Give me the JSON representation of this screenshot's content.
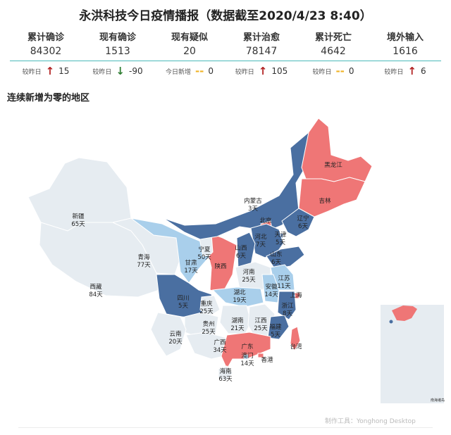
{
  "title": "永洪科技今日疫情播报（数据截至2020/4/23 8:40）",
  "kpis": [
    {
      "label": "累计确诊",
      "value": "84302",
      "delta_label": "较昨日",
      "dir": "up",
      "delta": "15"
    },
    {
      "label": "现有确诊",
      "value": "1513",
      "delta_label": "较昨日",
      "dir": "down",
      "delta": "-90"
    },
    {
      "label": "现有疑似",
      "value": "20",
      "delta_label": "今日新增",
      "dir": "none",
      "delta": "0"
    },
    {
      "label": "累计治愈",
      "value": "78147",
      "delta_label": "较昨日",
      "dir": "up",
      "delta": "105"
    },
    {
      "label": "累计死亡",
      "value": "4642",
      "delta_label": "较昨日",
      "dir": "none",
      "delta": "0"
    },
    {
      "label": "境外输入",
      "value": "1616",
      "delta_label": "较昨日",
      "dir": "up",
      "delta": "6"
    }
  ],
  "colors": {
    "up": "#b22222",
    "down": "#2e7d32",
    "none": "#f0b429",
    "zero_days_long": "#4a6fa1",
    "zero_days_short": "#a9cfeb",
    "active": "#ef7676",
    "no_data": "#e6ecf1"
  },
  "section_title": "连续新增为零的地区",
  "scs_label": "南海诸岛",
  "footer": "制作工具：Yonghong Desktop",
  "chart_data": {
    "type": "map",
    "title": "连续新增为零的地区",
    "metric": "连续新增为零天数",
    "regions": [
      {
        "name": "新疆",
        "days": 65
      },
      {
        "name": "西藏",
        "days": 84
      },
      {
        "name": "青海",
        "days": 77
      },
      {
        "name": "甘肃",
        "days": 17
      },
      {
        "name": "宁夏",
        "days": 50
      },
      {
        "name": "陕西",
        "days": null
      },
      {
        "name": "内蒙古",
        "days": 3
      },
      {
        "name": "黑龙江",
        "days": null
      },
      {
        "name": "吉林",
        "days": null
      },
      {
        "name": "辽宁",
        "days": 6
      },
      {
        "name": "北京",
        "days": null
      },
      {
        "name": "天津",
        "days": 5
      },
      {
        "name": "河北",
        "days": 7
      },
      {
        "name": "山西",
        "days": 6
      },
      {
        "name": "山东",
        "days": 6
      },
      {
        "name": "河南",
        "days": 25
      },
      {
        "name": "江苏",
        "days": 11
      },
      {
        "name": "安徽",
        "days": 14
      },
      {
        "name": "上海",
        "days": null
      },
      {
        "name": "湖北",
        "days": 19
      },
      {
        "name": "四川",
        "days": 5
      },
      {
        "name": "重庆",
        "days": 25
      },
      {
        "name": "浙江",
        "days": 8
      },
      {
        "name": "贵州",
        "days": 25
      },
      {
        "name": "湖南",
        "days": 21
      },
      {
        "name": "江西",
        "days": 25
      },
      {
        "name": "福建",
        "days": 5
      },
      {
        "name": "云南",
        "days": 20
      },
      {
        "name": "广西",
        "days": 34
      },
      {
        "name": "广东",
        "days": null
      },
      {
        "name": "澳门",
        "days": 14
      },
      {
        "name": "香港",
        "days": null
      },
      {
        "name": "台湾",
        "days": null
      },
      {
        "name": "海南",
        "days": 63
      }
    ]
  }
}
